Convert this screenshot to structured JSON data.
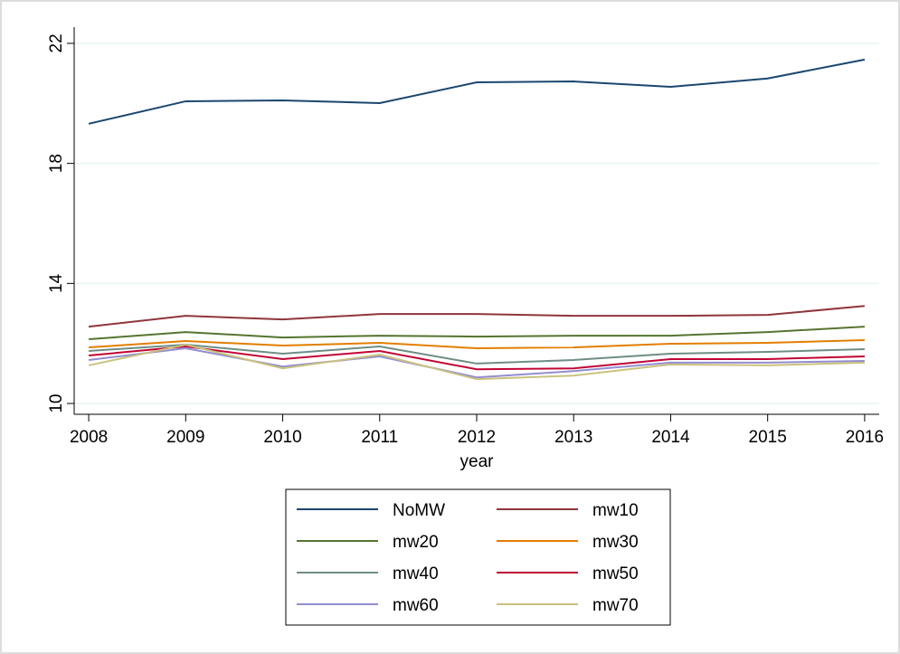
{
  "chart_data": {
    "type": "line",
    "x_label": "year",
    "x": [
      2008,
      2009,
      2010,
      2011,
      2012,
      2013,
      2014,
      2015,
      2016
    ],
    "xlim": [
      2007.85,
      2016.15
    ],
    "xticks": [
      2008,
      2009,
      2010,
      2011,
      2012,
      2013,
      2014,
      2015,
      2016
    ],
    "ylim": [
      9.64,
      22.54
    ],
    "yticks": [
      10,
      14,
      18,
      22
    ],
    "grid": true,
    "series": [
      {
        "name": "NoMW",
        "color": "#1a476f",
        "values": [
          19.32,
          20.07,
          20.1,
          20.01,
          20.7,
          20.73,
          20.55,
          20.83,
          21.46
        ]
      },
      {
        "name": "mw10",
        "color": "#90353b",
        "values": [
          12.56,
          12.92,
          12.8,
          12.98,
          12.98,
          12.92,
          12.92,
          12.95,
          13.25
        ]
      },
      {
        "name": "mw20",
        "color": "#55752f",
        "values": [
          12.14,
          12.38,
          12.2,
          12.26,
          12.23,
          12.26,
          12.26,
          12.38,
          12.56
        ]
      },
      {
        "name": "mw30",
        "color": "#e37e00",
        "values": [
          11.87,
          12.08,
          11.93,
          12.02,
          11.84,
          11.87,
          11.99,
          12.02,
          12.11
        ]
      },
      {
        "name": "mw40",
        "color": "#6e8e84",
        "values": [
          11.75,
          11.96,
          11.66,
          11.9,
          11.33,
          11.45,
          11.66,
          11.72,
          11.81
        ]
      },
      {
        "name": "mw50",
        "color": "#c10534",
        "values": [
          11.6,
          11.9,
          11.48,
          11.75,
          11.14,
          11.17,
          11.48,
          11.48,
          11.57
        ]
      },
      {
        "name": "mw60",
        "color": "#938dd2",
        "values": [
          11.45,
          11.84,
          11.23,
          11.57,
          10.87,
          11.08,
          11.36,
          11.36,
          11.42
        ]
      },
      {
        "name": "mw70",
        "color": "#cac27e",
        "values": [
          11.27,
          11.96,
          11.17,
          11.63,
          10.81,
          10.93,
          11.3,
          11.27,
          11.36
        ]
      }
    ]
  }
}
